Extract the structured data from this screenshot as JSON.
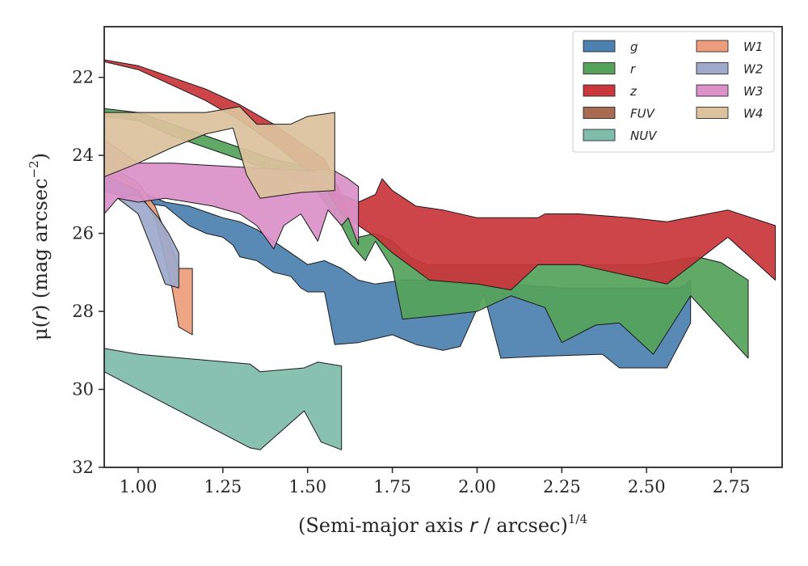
{
  "chart_data": {
    "type": "area",
    "xlabel_main": "(Semi-major axis ",
    "xlabel_var": "r",
    "xlabel_tail": " / arcsec)",
    "xlabel_exp": "1/4",
    "ylabel_main": "μ(",
    "ylabel_var": "r",
    "ylabel_tail": ") (mag arcsec",
    "ylabel_exp": "−2",
    "ylabel_close": ")",
    "xlim": [
      0.9,
      2.9
    ],
    "ylim": [
      32.0,
      20.7
    ],
    "y_inverted": true,
    "x_ticks": [
      1.0,
      1.25,
      1.5,
      1.75,
      2.0,
      2.25,
      2.5,
      2.75
    ],
    "x_tick_labels": [
      "1.00",
      "1.25",
      "1.50",
      "1.75",
      "2.00",
      "2.25",
      "2.50",
      "2.75"
    ],
    "y_ticks": [
      22,
      24,
      26,
      28,
      30,
      32
    ],
    "y_tick_labels": [
      "22",
      "24",
      "26",
      "28",
      "30",
      "32"
    ],
    "grid": false,
    "legend_position": "top-right",
    "legend_columns": 2,
    "series": [
      {
        "name": "g",
        "color": "#4c81b0",
        "upper": [
          [
            0.9,
            24.1
          ],
          [
            1.0,
            24.9
          ],
          [
            1.08,
            25.2
          ],
          [
            1.15,
            25.3
          ],
          [
            1.25,
            25.6
          ],
          [
            1.3,
            25.7
          ],
          [
            1.35,
            25.9
          ],
          [
            1.4,
            26.2
          ],
          [
            1.45,
            26.5
          ],
          [
            1.5,
            26.8
          ],
          [
            1.55,
            26.7
          ],
          [
            1.6,
            26.9
          ],
          [
            1.65,
            27.2
          ],
          [
            1.7,
            27.3
          ],
          [
            1.78,
            27.2
          ],
          [
            1.85,
            27.2
          ],
          [
            1.95,
            27.3
          ],
          [
            2.02,
            27.3
          ],
          [
            2.1,
            27.3
          ],
          [
            2.25,
            27.4
          ],
          [
            2.4,
            27.4
          ],
          [
            2.5,
            27.4
          ],
          [
            2.6,
            27.4
          ],
          [
            2.63,
            27.2
          ]
        ],
        "lower": [
          [
            0.9,
            24.9
          ],
          [
            1.0,
            25.2
          ],
          [
            1.08,
            25.3
          ],
          [
            1.15,
            25.8
          ],
          [
            1.2,
            26.0
          ],
          [
            1.25,
            26.1
          ],
          [
            1.28,
            26.3
          ],
          [
            1.3,
            26.6
          ],
          [
            1.35,
            26.7
          ],
          [
            1.4,
            27.0
          ],
          [
            1.45,
            27.1
          ],
          [
            1.48,
            27.4
          ],
          [
            1.5,
            27.5
          ],
          [
            1.55,
            27.5
          ],
          [
            1.58,
            28.85
          ],
          [
            1.65,
            28.8
          ],
          [
            1.75,
            28.6
          ],
          [
            1.82,
            28.85
          ],
          [
            1.9,
            29.0
          ],
          [
            1.95,
            28.9
          ],
          [
            2.02,
            27.55
          ],
          [
            2.07,
            29.2
          ],
          [
            2.2,
            29.15
          ],
          [
            2.37,
            29.1
          ],
          [
            2.42,
            29.45
          ],
          [
            2.56,
            29.45
          ],
          [
            2.63,
            28.3
          ]
        ]
      },
      {
        "name": "r",
        "color": "#55a35b",
        "upper": [
          [
            0.9,
            22.8
          ],
          [
            1.0,
            22.9
          ],
          [
            1.1,
            23.2
          ],
          [
            1.2,
            23.5
          ],
          [
            1.3,
            23.8
          ],
          [
            1.4,
            24.1
          ],
          [
            1.5,
            24.3
          ],
          [
            1.55,
            24.6
          ],
          [
            1.6,
            25.1
          ],
          [
            1.62,
            25.5
          ],
          [
            1.65,
            26.1
          ],
          [
            1.7,
            26.0
          ],
          [
            1.75,
            26.2
          ],
          [
            1.8,
            26.6
          ],
          [
            1.85,
            26.8
          ],
          [
            1.95,
            26.8
          ],
          [
            2.1,
            26.8
          ],
          [
            2.2,
            26.8
          ],
          [
            2.3,
            26.8
          ],
          [
            2.5,
            26.8
          ],
          [
            2.65,
            26.6
          ],
          [
            2.72,
            26.75
          ],
          [
            2.8,
            27.2
          ]
        ],
        "lower": [
          [
            0.9,
            23.0
          ],
          [
            1.0,
            23.1
          ],
          [
            1.1,
            23.5
          ],
          [
            1.2,
            23.8
          ],
          [
            1.3,
            24.1
          ],
          [
            1.4,
            24.4
          ],
          [
            1.5,
            24.6
          ],
          [
            1.55,
            25.2
          ],
          [
            1.6,
            25.8
          ],
          [
            1.63,
            26.3
          ],
          [
            1.67,
            26.7
          ],
          [
            1.7,
            26.2
          ],
          [
            1.75,
            26.9
          ],
          [
            1.78,
            28.2
          ],
          [
            1.9,
            28.1
          ],
          [
            2.0,
            28.0
          ],
          [
            2.1,
            27.6
          ],
          [
            2.2,
            27.9
          ],
          [
            2.25,
            28.8
          ],
          [
            2.35,
            28.35
          ],
          [
            2.42,
            28.3
          ],
          [
            2.52,
            29.1
          ],
          [
            2.63,
            27.6
          ],
          [
            2.8,
            29.2
          ]
        ]
      },
      {
        "name": "z",
        "color": "#c9363b",
        "upper": [
          [
            0.9,
            21.55
          ],
          [
            1.0,
            21.7
          ],
          [
            1.1,
            22.0
          ],
          [
            1.2,
            22.3
          ],
          [
            1.3,
            22.7
          ],
          [
            1.4,
            23.2
          ],
          [
            1.5,
            23.8
          ],
          [
            1.55,
            24.1
          ],
          [
            1.6,
            25.0
          ],
          [
            1.65,
            25.2
          ],
          [
            1.7,
            25.0
          ],
          [
            1.72,
            24.6
          ],
          [
            1.75,
            24.9
          ],
          [
            1.82,
            25.3
          ],
          [
            1.9,
            25.4
          ],
          [
            2.0,
            25.6
          ],
          [
            2.1,
            25.6
          ],
          [
            2.18,
            25.6
          ],
          [
            2.2,
            25.5
          ],
          [
            2.3,
            25.5
          ],
          [
            2.45,
            25.6
          ],
          [
            2.56,
            25.7
          ],
          [
            2.74,
            25.4
          ],
          [
            2.88,
            25.8
          ]
        ],
        "lower": [
          [
            0.9,
            21.6
          ],
          [
            1.0,
            21.8
          ],
          [
            1.1,
            22.2
          ],
          [
            1.2,
            22.6
          ],
          [
            1.3,
            23.1
          ],
          [
            1.4,
            23.7
          ],
          [
            1.5,
            24.4
          ],
          [
            1.55,
            24.8
          ],
          [
            1.6,
            25.5
          ],
          [
            1.65,
            25.8
          ],
          [
            1.7,
            26.1
          ],
          [
            1.75,
            26.5
          ],
          [
            1.86,
            27.2
          ],
          [
            2.0,
            27.3
          ],
          [
            2.1,
            27.45
          ],
          [
            2.18,
            26.8
          ],
          [
            2.3,
            26.8
          ],
          [
            2.4,
            27.0
          ],
          [
            2.56,
            27.3
          ],
          [
            2.74,
            26.1
          ],
          [
            2.88,
            27.2
          ]
        ]
      },
      {
        "name": "FUV",
        "color": "#a86b4f",
        "upper": [],
        "lower": []
      },
      {
        "name": "NUV",
        "color": "#80bcaa",
        "upper": [
          [
            0.9,
            28.95
          ],
          [
            1.0,
            29.1
          ],
          [
            1.33,
            29.35
          ],
          [
            1.36,
            29.55
          ],
          [
            1.49,
            29.45
          ],
          [
            1.53,
            29.3
          ],
          [
            1.6,
            29.4
          ]
        ],
        "lower": [
          [
            0.9,
            29.55
          ],
          [
            1.33,
            31.5
          ],
          [
            1.36,
            31.55
          ],
          [
            1.49,
            30.55
          ],
          [
            1.54,
            31.35
          ],
          [
            1.6,
            31.55
          ]
        ]
      },
      {
        "name": "W1",
        "color": "#ec9e7c",
        "upper": [
          [
            0.9,
            24.2
          ],
          [
            1.0,
            24.7
          ],
          [
            1.05,
            25.3
          ],
          [
            1.1,
            26.4
          ],
          [
            1.12,
            26.9
          ],
          [
            1.16,
            26.9
          ]
        ],
        "lower": [
          [
            0.9,
            24.5
          ],
          [
            1.0,
            24.9
          ],
          [
            1.05,
            25.6
          ],
          [
            1.1,
            27.4
          ],
          [
            1.12,
            28.4
          ],
          [
            1.16,
            28.6
          ]
        ]
      },
      {
        "name": "W2",
        "color": "#9ea9cb",
        "upper": [
          [
            0.94,
            25.1
          ],
          [
            1.0,
            25.0
          ],
          [
            1.06,
            25.6
          ],
          [
            1.09,
            26.0
          ],
          [
            1.12,
            26.5
          ]
        ],
        "lower": [
          [
            0.94,
            25.1
          ],
          [
            1.0,
            25.5
          ],
          [
            1.05,
            26.6
          ],
          [
            1.08,
            27.3
          ],
          [
            1.12,
            27.4
          ]
        ]
      },
      {
        "name": "W3",
        "color": "#dc91c8",
        "upper": [
          [
            0.9,
            23.6
          ],
          [
            1.0,
            24.2
          ],
          [
            1.1,
            24.2
          ],
          [
            1.2,
            24.25
          ],
          [
            1.3,
            24.3
          ],
          [
            1.4,
            24.35
          ],
          [
            1.5,
            24.4
          ],
          [
            1.55,
            24.35
          ],
          [
            1.58,
            24.4
          ],
          [
            1.62,
            24.6
          ],
          [
            1.65,
            24.8
          ]
        ],
        "lower": [
          [
            0.9,
            25.5
          ],
          [
            0.94,
            25.1
          ],
          [
            1.0,
            25.2
          ],
          [
            1.08,
            25.1
          ],
          [
            1.15,
            25.2
          ],
          [
            1.22,
            25.3
          ],
          [
            1.3,
            25.5
          ],
          [
            1.35,
            25.8
          ],
          [
            1.4,
            26.4
          ],
          [
            1.43,
            25.8
          ],
          [
            1.48,
            25.5
          ],
          [
            1.53,
            26.2
          ],
          [
            1.56,
            25.4
          ],
          [
            1.6,
            25.8
          ],
          [
            1.62,
            25.6
          ],
          [
            1.65,
            26.3
          ]
        ]
      },
      {
        "name": "W4",
        "color": "#dcc29d",
        "upper": [
          [
            0.9,
            22.9
          ],
          [
            1.0,
            22.9
          ],
          [
            1.1,
            22.9
          ],
          [
            1.2,
            22.9
          ],
          [
            1.3,
            22.75
          ],
          [
            1.35,
            23.2
          ],
          [
            1.45,
            23.2
          ],
          [
            1.5,
            23.0
          ],
          [
            1.58,
            22.9
          ]
        ],
        "lower": [
          [
            0.9,
            24.55
          ],
          [
            1.0,
            24.2
          ],
          [
            1.1,
            23.8
          ],
          [
            1.2,
            23.45
          ],
          [
            1.28,
            23.3
          ],
          [
            1.32,
            24.5
          ],
          [
            1.36,
            25.1
          ],
          [
            1.48,
            24.95
          ],
          [
            1.58,
            24.9
          ]
        ]
      }
    ]
  }
}
